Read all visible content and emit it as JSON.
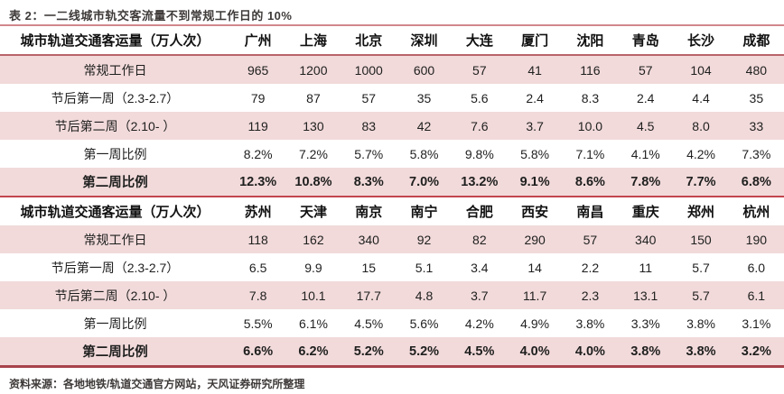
{
  "title": "表 2：一二线城市轨交客流量不到常规工作日的 10%",
  "footer": "资料来源：各地地铁/轨道交通官方网站，天风证券研究所整理",
  "colors": {
    "accent": "#a8444c",
    "row_pink": "#f2dada",
    "rule_light": "#d2878b",
    "rule_mid": "#b9646a",
    "rule_red": "#c2464e",
    "title_text": "#3e3a39"
  },
  "chart_data": {
    "type": "table",
    "title": "一二线城市轨交客流量不到常规工作日的 10%",
    "unit": "万人次",
    "sections": [
      {
        "header_label": "城市轨道交通客运量（万人次）",
        "cities": [
          "广州",
          "上海",
          "北京",
          "深圳",
          "大连",
          "厦门",
          "沈阳",
          "青岛",
          "长沙",
          "成都"
        ],
        "rows": [
          {
            "label": "常规工作日",
            "bold": false,
            "values": [
              "965",
              "1200",
              "1000",
              "600",
              "57",
              "41",
              "116",
              "57",
              "104",
              "480"
            ]
          },
          {
            "label": "节后第一周（2.3-2.7）",
            "bold": false,
            "values": [
              "79",
              "87",
              "57",
              "35",
              "5.6",
              "2.4",
              "8.3",
              "2.4",
              "4.4",
              "35"
            ]
          },
          {
            "label": "节后第二周（2.10- ）",
            "bold": false,
            "values": [
              "119",
              "130",
              "83",
              "42",
              "7.6",
              "3.7",
              "10.0",
              "4.5",
              "8.0",
              "33"
            ]
          },
          {
            "label": "第一周比例",
            "bold": false,
            "values": [
              "8.2%",
              "7.2%",
              "5.7%",
              "5.8%",
              "9.8%",
              "5.8%",
              "7.1%",
              "4.1%",
              "4.2%",
              "7.3%"
            ]
          },
          {
            "label": "第二周比例",
            "bold": true,
            "values": [
              "12.3%",
              "10.8%",
              "8.3%",
              "7.0%",
              "13.2%",
              "9.1%",
              "8.6%",
              "7.8%",
              "7.7%",
              "6.8%"
            ]
          }
        ]
      },
      {
        "header_label": "城市轨道交通客运量（万人次）",
        "cities": [
          "苏州",
          "天津",
          "南京",
          "南宁",
          "合肥",
          "西安",
          "南昌",
          "重庆",
          "郑州",
          "杭州"
        ],
        "rows": [
          {
            "label": "常规工作日",
            "bold": false,
            "values": [
              "118",
              "162",
              "340",
              "92",
              "82",
              "290",
              "57",
              "340",
              "150",
              "190"
            ]
          },
          {
            "label": "节后第一周（2.3-2.7）",
            "bold": false,
            "values": [
              "6.5",
              "9.9",
              "15",
              "5.1",
              "3.4",
              "14",
              "2.2",
              "11",
              "5.7",
              "6.0"
            ]
          },
          {
            "label": "节后第二周（2.10- ）",
            "bold": false,
            "values": [
              "7.8",
              "10.1",
              "17.7",
              "4.8",
              "3.7",
              "11.7",
              "2.3",
              "13.1",
              "5.7",
              "6.1"
            ]
          },
          {
            "label": "第一周比例",
            "bold": false,
            "values": [
              "5.5%",
              "6.1%",
              "4.5%",
              "5.6%",
              "4.2%",
              "4.9%",
              "3.8%",
              "3.3%",
              "3.8%",
              "3.1%"
            ]
          },
          {
            "label": "第二周比例",
            "bold": true,
            "values": [
              "6.6%",
              "6.2%",
              "5.2%",
              "5.2%",
              "4.5%",
              "4.0%",
              "4.0%",
              "3.8%",
              "3.8%",
              "3.2%"
            ]
          }
        ]
      }
    ]
  }
}
